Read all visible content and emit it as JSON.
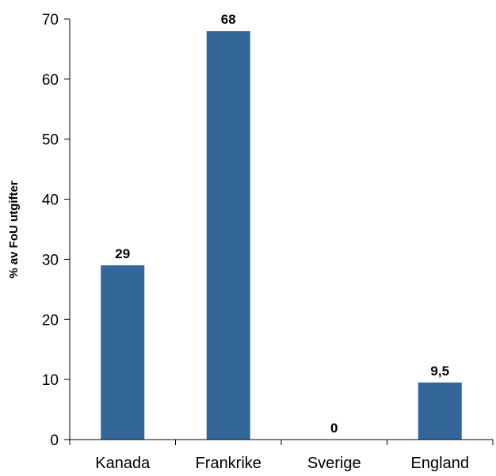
{
  "chart_data": {
    "type": "bar",
    "title": "",
    "xlabel": "",
    "ylabel": "% av FoU utgifter",
    "categories": [
      "Kanada",
      "Frankrike",
      "Sverige",
      "England"
    ],
    "values": [
      29,
      68,
      0,
      9.5
    ],
    "data_labels": [
      "29",
      "68",
      "0",
      "9,5"
    ],
    "ylim": [
      0,
      70
    ],
    "yticks": [
      0,
      10,
      20,
      30,
      40,
      50,
      60,
      70
    ],
    "ytick_labels": [
      "0",
      "10",
      "20",
      "30",
      "40",
      "50",
      "60",
      "70"
    ],
    "grid": false,
    "legend": "none",
    "bar_color": "#336699"
  }
}
